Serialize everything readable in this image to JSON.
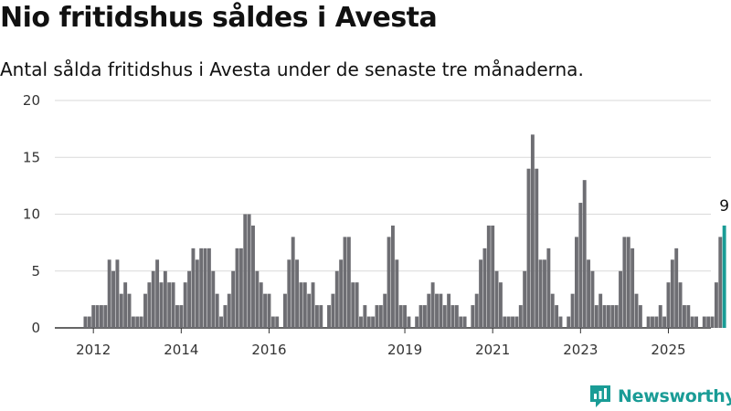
{
  "title": "Nio fritidshus såldes i Avesta",
  "subtitle": "Antal sålda fritidshus i Avesta under de senaste tre månaderna.",
  "brand": {
    "name": "Newsworthy",
    "icon": "newsworthy-logo-icon"
  },
  "colors": {
    "bar": "#6e6e73",
    "highlight": "#1a9c96",
    "grid": "#d9d9d9",
    "axis": "#333333"
  },
  "chart_data": {
    "type": "bar",
    "title": "Nio fritidshus såldes i Avesta",
    "subtitle": "Antal sålda fritidshus i Avesta under de senaste tre månaderna.",
    "xlabel": "",
    "ylabel": "",
    "ylim": [
      0,
      20
    ],
    "yticks": [
      0,
      5,
      10,
      15,
      20
    ],
    "xticks": [
      {
        "label": "2012",
        "index": 2
      },
      {
        "label": "2014",
        "index": 24
      },
      {
        "label": "2016",
        "index": 46
      },
      {
        "label": "2019",
        "index": 80
      },
      {
        "label": "2021",
        "index": 102
      },
      {
        "label": "2023",
        "index": 124
      },
      {
        "label": "2025",
        "index": 146
      }
    ],
    "grid": true,
    "highlight_last": true,
    "last_label": "9",
    "values": [
      1,
      1,
      2,
      2,
      2,
      2,
      6,
      5,
      6,
      3,
      4,
      3,
      1,
      1,
      1,
      3,
      4,
      5,
      6,
      4,
      5,
      4,
      4,
      2,
      2,
      4,
      5,
      7,
      6,
      7,
      7,
      7,
      5,
      3,
      1,
      2,
      3,
      5,
      7,
      7,
      10,
      10,
      9,
      5,
      4,
      3,
      3,
      1,
      1,
      0,
      3,
      6,
      8,
      6,
      4,
      4,
      3,
      4,
      2,
      2,
      0,
      2,
      3,
      5,
      6,
      8,
      8,
      4,
      4,
      1,
      2,
      1,
      1,
      2,
      2,
      3,
      8,
      9,
      6,
      2,
      2,
      1,
      0,
      1,
      2,
      2,
      3,
      4,
      3,
      3,
      2,
      3,
      2,
      2,
      1,
      1,
      0,
      2,
      3,
      6,
      7,
      9,
      9,
      5,
      4,
      1,
      1,
      1,
      1,
      2,
      5,
      14,
      17,
      14,
      6,
      6,
      7,
      3,
      2,
      1,
      0,
      1,
      3,
      8,
      11,
      13,
      6,
      5,
      2,
      3,
      2,
      2,
      2,
      2,
      5,
      8,
      8,
      7,
      3,
      2,
      0,
      1,
      1,
      1,
      2,
      1,
      4,
      6,
      7,
      4,
      2,
      2,
      1,
      1,
      0,
      1,
      1,
      1,
      4,
      8,
      9
    ]
  }
}
